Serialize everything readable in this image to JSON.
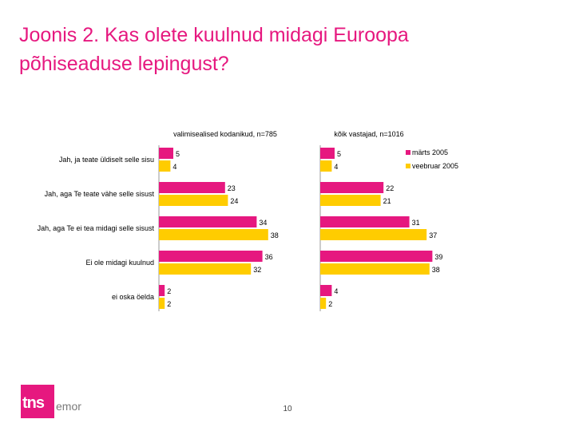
{
  "title_lines": [
    "Joonis 2. Kas olete kuulnud midagi Euroopa",
    "põhiseaduse lepingust?"
  ],
  "page_number": "10",
  "logo": {
    "tns": "tns",
    "emor": "emor"
  },
  "colors": {
    "title": "#e6187f",
    "marts": "#e6187f",
    "veebruar": "#ffcc00",
    "logo": "#e6187f"
  },
  "chart_data": {
    "type": "bar",
    "orientation": "horizontal",
    "categories": [
      "Jah, ja teate üldiselt selle sisu",
      "Jah, aga Te teate vähe selle sisust",
      "Jah, aga Te ei tea midagi selle sisust",
      "Ei ole midagi kuulnud",
      "ei oska öelda"
    ],
    "legend": {
      "position": "top-right",
      "entries": [
        {
          "label": "märts 2005",
          "color": "#e6187f"
        },
        {
          "label": "veebruar 2005",
          "color": "#ffcc00"
        }
      ]
    },
    "panels": [
      {
        "title": "valimisealised kodanikud, n=785",
        "series": [
          {
            "name": "märts 2005",
            "values": [
              5,
              23,
              34,
              36,
              2
            ]
          },
          {
            "name": "veebruar 2005",
            "values": [
              4,
              24,
              38,
              32,
              2
            ]
          }
        ]
      },
      {
        "title": "kõik vastajad, n=1016",
        "series": [
          {
            "name": "märts 2005",
            "values": [
              5,
              22,
              31,
              39,
              4
            ]
          },
          {
            "name": "veebruar 2005",
            "values": [
              4,
              21,
              37,
              38,
              2
            ]
          }
        ]
      }
    ]
  }
}
